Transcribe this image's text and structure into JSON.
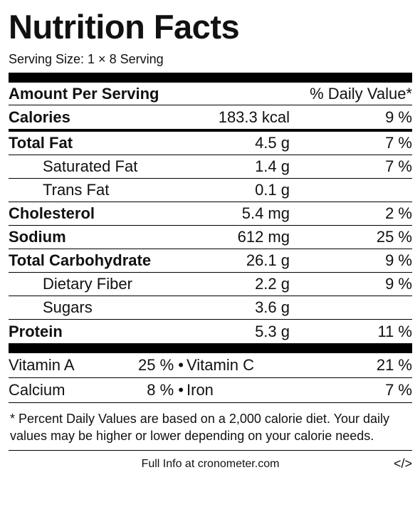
{
  "title": "Nutrition Facts",
  "serving_size": "Serving Size: 1 × 8 Serving",
  "header": {
    "amount_label": "Amount Per Serving",
    "dv_label": "% Daily Value*"
  },
  "calories": {
    "label": "Calories",
    "amount": "183.3 kcal",
    "dv": "9 %"
  },
  "nutrients": [
    {
      "label": "Total Fat",
      "amount": "4.5 g",
      "dv": "7 %"
    },
    {
      "label": "Saturated Fat",
      "amount": "1.4 g",
      "dv": "7 %"
    },
    {
      "label": "Trans Fat",
      "amount": "0.1 g",
      "dv": ""
    },
    {
      "label": "Cholesterol",
      "amount": "5.4 mg",
      "dv": "2 %"
    },
    {
      "label": "Sodium",
      "amount": "612 mg",
      "dv": "25 %"
    },
    {
      "label": "Total Carbohydrate",
      "amount": "26.1 g",
      "dv": "9 %"
    },
    {
      "label": "Dietary Fiber",
      "amount": "2.2 g",
      "dv": "9 %"
    },
    {
      "label": "Sugars",
      "amount": "3.6 g",
      "dv": ""
    },
    {
      "label": "Protein",
      "amount": "5.3 g",
      "dv": "11 %"
    }
  ],
  "vitamins": [
    {
      "left_label": "Vitamin A",
      "left_value": "25 % •",
      "right_label": "Vitamin C",
      "right_value": "21 %"
    },
    {
      "left_label": "Calcium",
      "left_value": "8 % •",
      "right_label": "Iron",
      "right_value": "7 %"
    }
  ],
  "footnote": "* Percent Daily Values are based on a 2,000 calorie diet. Your daily values may be higher or lower depending on your calorie needs.",
  "full_info_link": "Full Info at cronometer.com",
  "embed_label": "</>"
}
